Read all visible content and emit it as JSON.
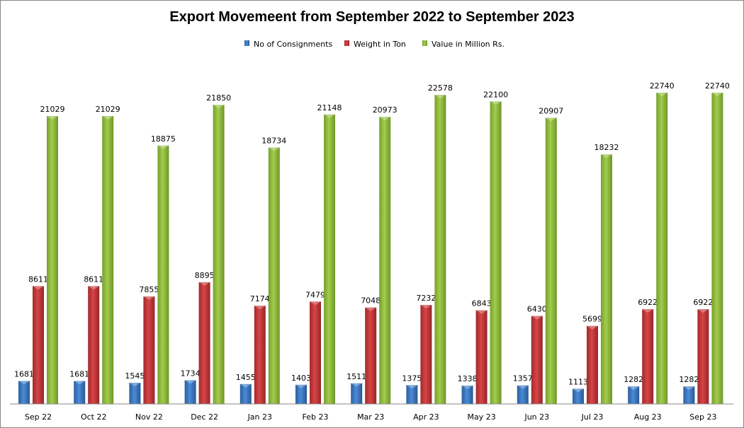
{
  "chart_data": {
    "type": "bar",
    "title": "Export Movemeent from September 2022 to September 2023",
    "xlabel": "",
    "ylabel": "",
    "ylim": [
      0,
      25000
    ],
    "grid": false,
    "legend_position": "top",
    "categories": [
      "Sep 22",
      "Oct 22",
      "Nov 22",
      "Dec 22",
      "Jan 23",
      "Feb 23",
      "Mar 23",
      "Apr 23",
      "May 23",
      "Jun 23",
      "Jul 23",
      "Aug 23",
      "Sep 23"
    ],
    "series": [
      {
        "name": "No of Consignments",
        "color": "#3a75c4",
        "values": [
          1681,
          1681,
          1545,
          1734,
          1455,
          1403,
          1511,
          1375,
          1338,
          1357,
          1113,
          1282,
          1282
        ]
      },
      {
        "name": "Weight in Ton",
        "color": "#c0383a",
        "values": [
          8611,
          8611,
          7855,
          8895,
          7174,
          7479,
          7048,
          7232,
          6843,
          6430,
          5699,
          6922,
          6922
        ]
      },
      {
        "name": "Value in Million Rs.",
        "color": "#8db83a",
        "values": [
          21029,
          21029,
          18875,
          21850,
          18734,
          21148,
          20973,
          22578,
          22100,
          20907,
          18232,
          22740,
          22740
        ]
      }
    ]
  }
}
